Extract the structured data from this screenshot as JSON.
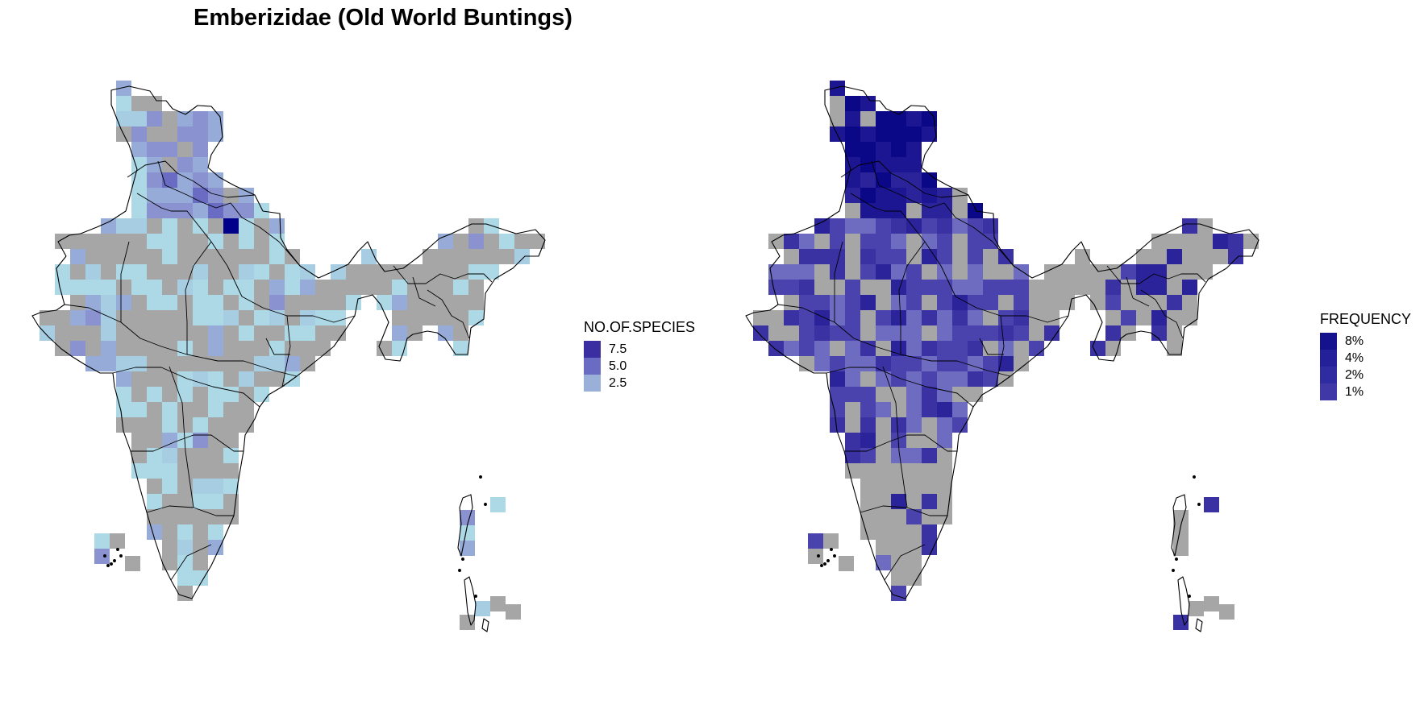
{
  "title": "Emberizidae (Old World Buntings)",
  "colors": {
    "no_data": "#a6a6a6",
    "border": "#000000",
    "background": "#ffffff"
  },
  "panels": [
    {
      "id": "left",
      "legend": {
        "title": "NO.OF.SPECIES",
        "entries": [
          {
            "label": "7.5",
            "color": "#3b2ea0"
          },
          {
            "label": "5.0",
            "color": "#6a6bc2"
          },
          {
            "label": "2.5",
            "color": "#9bb0d8"
          }
        ]
      },
      "palette": [
        "#add8e6",
        "#a7cde3",
        "#96abd8",
        "#8a93d0",
        "#6a6bc2",
        "#3b2ea0",
        "#00008b"
      ]
    },
    {
      "id": "right",
      "legend": {
        "title": "FREQUENCY",
        "entries": [
          {
            "label": "8%",
            "color": "#14128c"
          },
          {
            "label": "4%",
            "color": "#24209a"
          },
          {
            "label": "2%",
            "color": "#2f2ba0"
          },
          {
            "label": "1%",
            "color": "#4138a8"
          }
        ]
      },
      "palette": [
        "#8e90cf",
        "#6e6cc0",
        "#4a42ad",
        "#3a31a3",
        "#2b239a",
        "#1d1692",
        "#0b0888"
      ]
    }
  ]
}
